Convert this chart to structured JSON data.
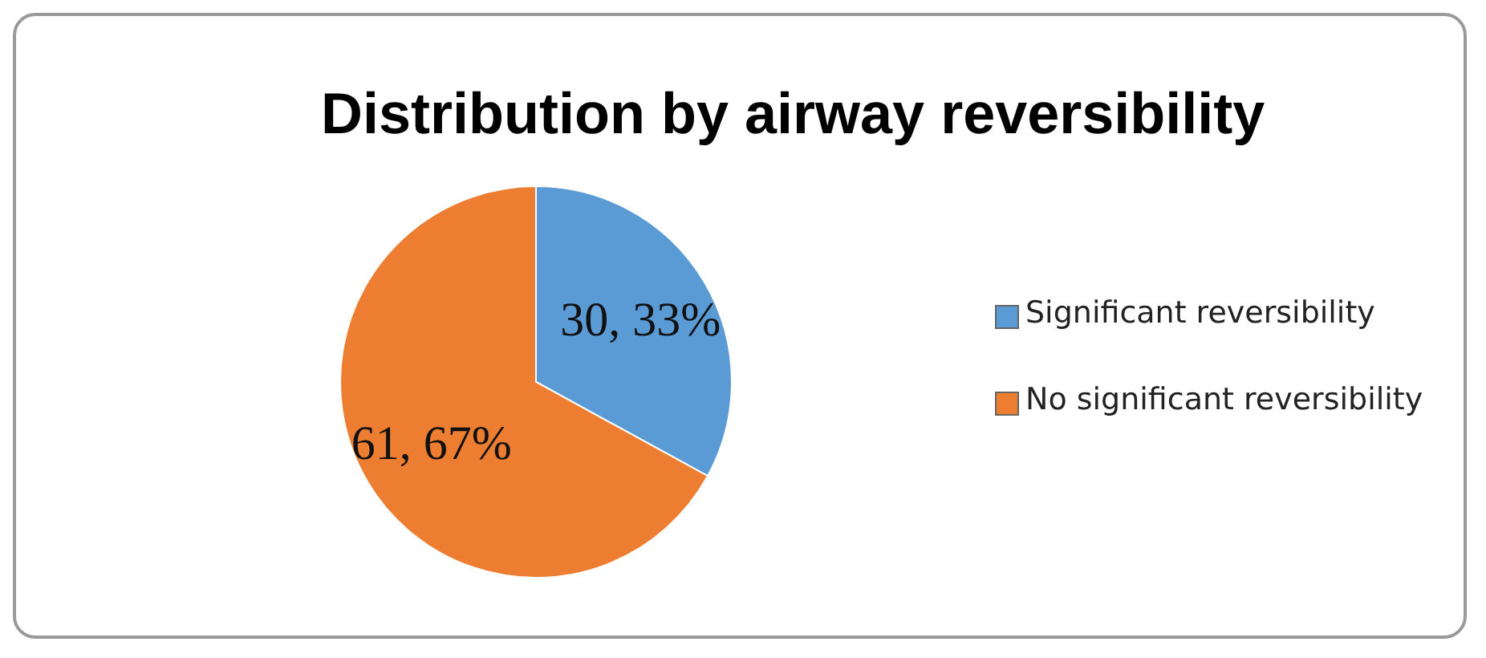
{
  "chart_data": {
    "type": "pie",
    "title": "Distribution by airway reversibility",
    "categories": [
      "Significant reversibility",
      "No significant reversibility"
    ],
    "values": [
      30,
      61
    ],
    "colors": [
      "#5b9bd5",
      "#ed7d31"
    ],
    "value_labels": [
      "30, 33%",
      "61, 67%"
    ],
    "legend": "right"
  }
}
